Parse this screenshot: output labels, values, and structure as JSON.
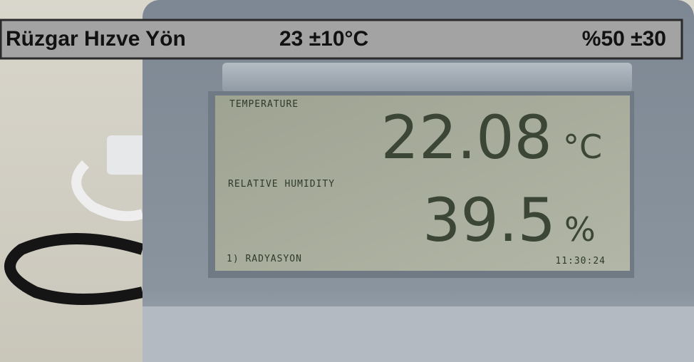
{
  "header": {
    "title": "Rüzgar Hızve Yön",
    "temperature_spec": "23 ±10°C",
    "humidity_spec": "%50 ±30"
  },
  "display": {
    "temperature_label": "TEMPERATURE",
    "temperature_value": "22.08",
    "temperature_unit": "°C",
    "humidity_label": "RELATIVE HUMIDITY",
    "humidity_value": "39.5",
    "humidity_unit": "%",
    "status": "1) RADYASYON",
    "time": "11:30:24"
  }
}
